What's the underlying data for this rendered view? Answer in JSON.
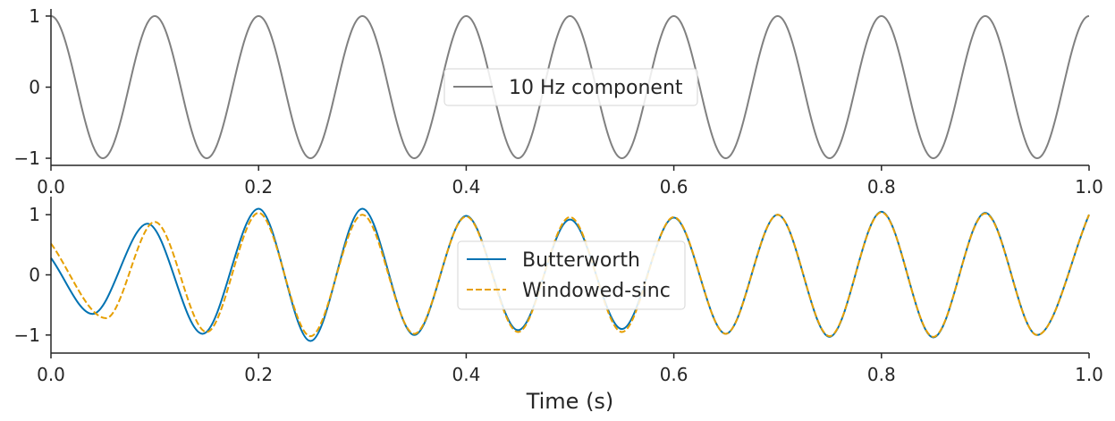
{
  "chart_data": [
    {
      "type": "line",
      "title": "",
      "xlabel": "",
      "ylabel": "",
      "xlim": [
        0.0,
        1.0
      ],
      "ylim": [
        -1.1,
        1.1
      ],
      "xticks": [
        "0.0",
        "0.2",
        "0.4",
        "0.6",
        "0.8",
        "1.0"
      ],
      "yticks": [
        "−1",
        "0",
        "1"
      ],
      "grid": false,
      "legend_position": "center",
      "series": [
        {
          "name": "10 Hz component",
          "color": "#808080",
          "style": "solid",
          "frequency_hz": 10,
          "amplitude": 1.0,
          "function": "cos(2π·10·t)"
        }
      ]
    },
    {
      "type": "line",
      "title": "",
      "xlabel": "Time (s)",
      "ylabel": "",
      "xlim": [
        0.0,
        1.0
      ],
      "ylim": [
        -1.3,
        1.3
      ],
      "xticks": [
        "0.0",
        "0.2",
        "0.4",
        "0.6",
        "0.8",
        "1.0"
      ],
      "yticks": [
        "−1",
        "0",
        "1"
      ],
      "grid": false,
      "legend_position": "center",
      "series": [
        {
          "name": "Butterworth",
          "color": "#0072B2",
          "style": "solid",
          "frequency_hz": 10,
          "samples": [
            [
              0.0,
              0.28
            ],
            [
              0.04,
              -0.65
            ],
            [
              0.093,
              0.85
            ],
            [
              0.146,
              -0.98
            ],
            [
              0.2,
              1.1
            ],
            [
              0.25,
              -1.1
            ],
            [
              0.3,
              1.1
            ],
            [
              0.35,
              -1.0
            ],
            [
              0.4,
              0.98
            ],
            [
              0.45,
              -0.92
            ],
            [
              0.5,
              0.92
            ],
            [
              0.55,
              -0.9
            ],
            [
              0.6,
              0.95
            ],
            [
              0.65,
              -0.98
            ],
            [
              0.7,
              1.0
            ],
            [
              0.75,
              -1.03
            ],
            [
              0.8,
              1.05
            ],
            [
              0.85,
              -1.04
            ],
            [
              0.9,
              1.03
            ],
            [
              0.95,
              -1.0
            ],
            [
              1.0,
              1.0
            ]
          ]
        },
        {
          "name": "Windowed-sinc",
          "color": "#E69F00",
          "style": "dashed",
          "frequency_hz": 10,
          "samples": [
            [
              0.0,
              0.52
            ],
            [
              0.053,
              -0.72
            ],
            [
              0.1,
              0.88
            ],
            [
              0.15,
              -0.95
            ],
            [
              0.2,
              1.03
            ],
            [
              0.25,
              -1.02
            ],
            [
              0.3,
              1.0
            ],
            [
              0.35,
              -0.98
            ],
            [
              0.4,
              0.97
            ],
            [
              0.45,
              -0.95
            ],
            [
              0.5,
              0.96
            ],
            [
              0.55,
              -0.95
            ],
            [
              0.6,
              0.96
            ],
            [
              0.65,
              -0.98
            ],
            [
              0.7,
              1.0
            ],
            [
              0.75,
              -1.02
            ],
            [
              0.8,
              1.04
            ],
            [
              0.85,
              -1.03
            ],
            [
              0.9,
              1.02
            ],
            [
              0.95,
              -1.0
            ],
            [
              1.0,
              1.0
            ]
          ]
        }
      ]
    }
  ]
}
